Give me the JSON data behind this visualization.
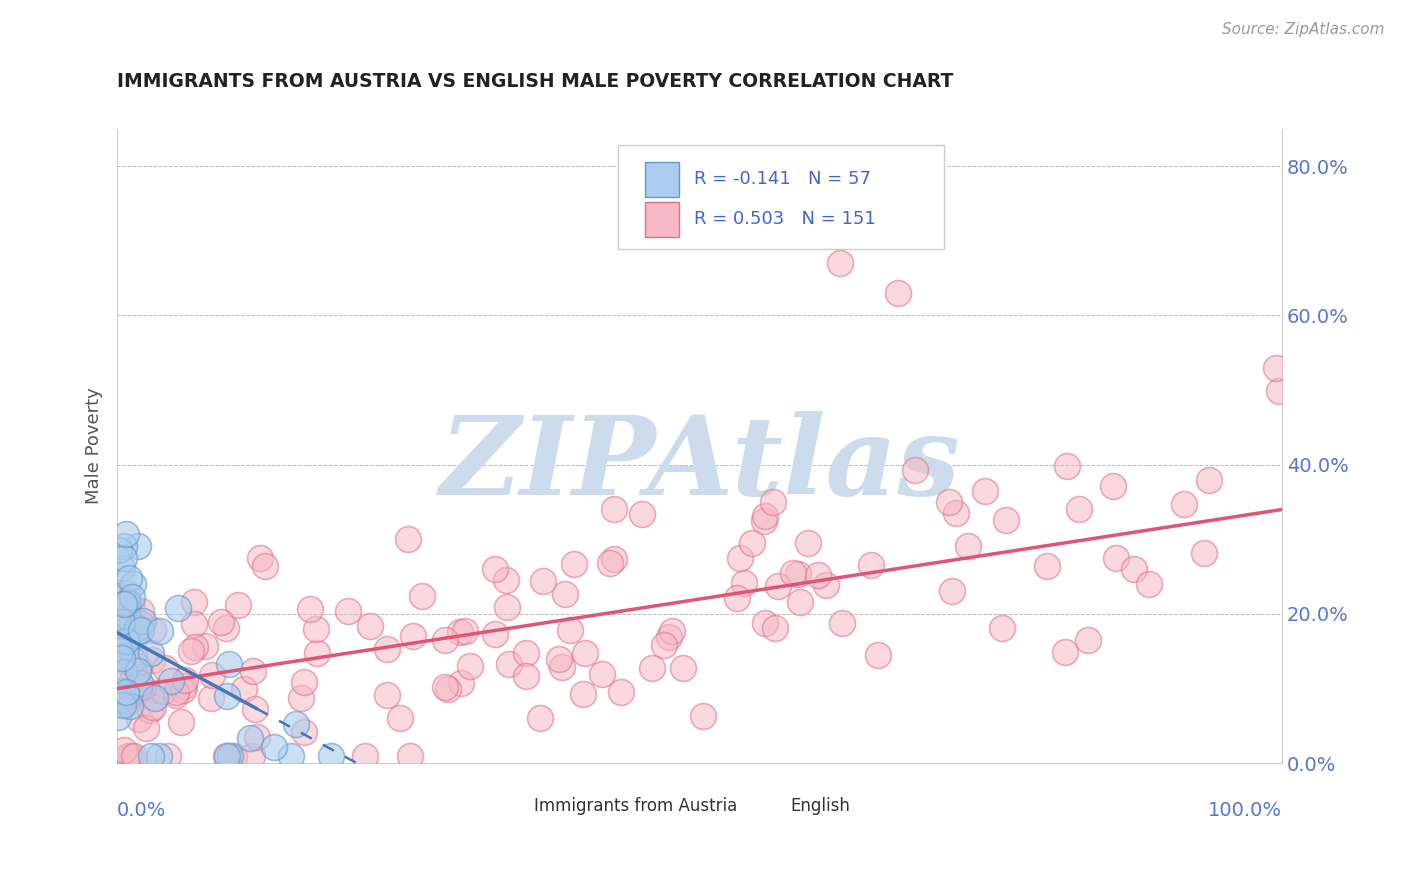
{
  "title": "IMMIGRANTS FROM AUSTRIA VS ENGLISH MALE POVERTY CORRELATION CHART",
  "source_text": "Source: ZipAtlas.com",
  "ylabel": "Male Poverty",
  "xlim": [
    0.0,
    1.0
  ],
  "ylim": [
    0.0,
    0.85
  ],
  "ytick_labels": [
    "0.0%",
    "20.0%",
    "40.0%",
    "60.0%",
    "80.0%"
  ],
  "ytick_values": [
    0.0,
    0.2,
    0.4,
    0.6,
    0.8
  ],
  "background_color": "#ffffff",
  "grid_color": "#bbbbbb",
  "watermark_text": "ZIPAtlas",
  "watermark_color": "#cddcec",
  "austria_face": "#aaccee",
  "austria_edge": "#6699cc",
  "english_face": "#f5b8c4",
  "english_edge": "#e07090",
  "trendline_austria_color": "#4477bb",
  "trendline_english_color": "#e05575",
  "title_color": "#222222",
  "source_color": "#999999",
  "tick_color": "#5577cc",
  "ylabel_color": "#555555",
  "legend_text_color": "#4466cc"
}
